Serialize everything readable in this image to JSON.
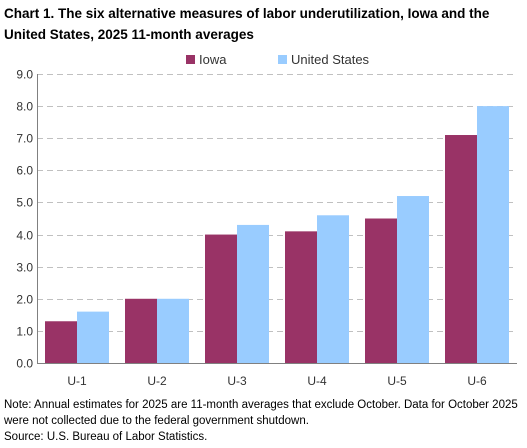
{
  "chart_data": {
    "type": "bar",
    "title": "Chart 1. The six alternative measures of labor underutilization, Iowa and the United States, 2025 11-month averages",
    "categories": [
      "U-1",
      "U-2",
      "U-3",
      "U-4",
      "U-5",
      "U-6"
    ],
    "series": [
      {
        "name": "Iowa",
        "color": "#993366",
        "values": [
          1.3,
          2.0,
          4.0,
          4.1,
          4.5,
          7.1
        ]
      },
      {
        "name": "United States",
        "color": "#99ccff",
        "values": [
          1.6,
          2.0,
          4.3,
          4.6,
          5.2,
          8.0
        ]
      }
    ],
    "ylim": [
      0,
      9
    ],
    "yticks": [
      "0.0",
      "1.0",
      "2.0",
      "3.0",
      "4.0",
      "5.0",
      "6.0",
      "7.0",
      "8.0",
      "9.0"
    ],
    "ytick_step": 1,
    "xlabel": "",
    "ylabel": "",
    "legend_position": "top-center",
    "grid": "dashed horizontal",
    "grid_color": "#c0c0c0",
    "axis_color": "#808080"
  },
  "notes": {
    "note": "Note: Annual estimates for 2025 are 11-month averages that exclude October. Data for October 2025 were not collected due to the federal government shutdown.",
    "source": "Source: U.S. Bureau of Labor Statistics."
  }
}
